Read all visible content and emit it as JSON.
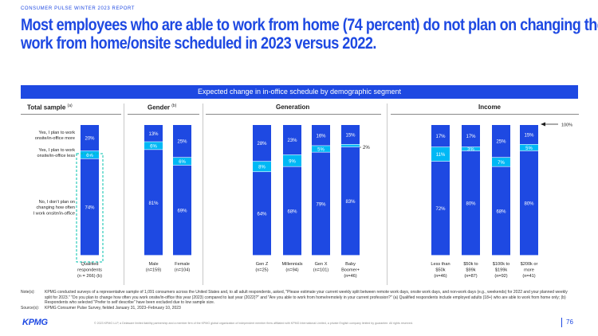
{
  "header": {
    "report_label": "CONSUMER PULSE WINTER 2023 REPORT",
    "title_line1": "Most employees who are able to work from home (74 percent) do not plan on changing their",
    "title_line2": "work from home/onsite scheduled in 2023 versus 2022."
  },
  "banner": "Expected change in in-office schedule by demographic segment",
  "groups": [
    {
      "title": "Total sample",
      "note": "(a)"
    },
    {
      "title": "Gender",
      "note": "(b)"
    },
    {
      "title": "Generation",
      "note": ""
    },
    {
      "title": "Income",
      "note": ""
    }
  ],
  "row_labels": {
    "more": "Yes, I plan to work onsite/in-office more",
    "less": "Yes, I plan to work onsite/in-office less",
    "no_change": "No, I don't plan on changing how often I work onsite/in-office"
  },
  "annotations": {
    "gen_small": "2%",
    "income_arrow": "100%"
  },
  "colors": {
    "no_change": "#1e49e2",
    "less": "#00b8f5",
    "more": "#1e49e2",
    "text_on_dark": "#ffffff",
    "accent": "#1e49e2",
    "highlight_outline": "#00c0ae"
  },
  "chart_data": {
    "type": "bar",
    "stacked": true,
    "title": "Expected change in in-office schedule by demographic segment",
    "categories": [
      "Qualified respondents (n = 266) (b)",
      "Male (n=159)",
      "Female (n=104)",
      "Gen Z (n=25)",
      "Millennials (n=94)",
      "Gen X (n=101)",
      "Baby Boomer+ (n=46)",
      "Less than $50k (n=46)",
      "$50k to $99k (n=87)",
      "$100k to $199k (n=92)",
      "$200k or more (n=41)"
    ],
    "category_lines": [
      [
        "Qualified",
        "respondents",
        "(n = 266) (b)"
      ],
      [
        "Male",
        "(n=159)"
      ],
      [
        "Female",
        "(n=104)"
      ],
      [
        "Gen Z",
        "(n=25)"
      ],
      [
        "Millennials",
        "(n=94)"
      ],
      [
        "Gen X",
        "(n=101)"
      ],
      [
        "Baby",
        "Boomer+",
        "(n=46)"
      ],
      [
        "Less than",
        "$50k",
        "(n=46)"
      ],
      [
        "$50k to",
        "$99k",
        "(n=87)"
      ],
      [
        "$100k to",
        "$199k",
        "(n=92)"
      ],
      [
        "$200k or",
        "more",
        "(n=41)"
      ]
    ],
    "series": [
      {
        "name": "No, I don't plan on changing how often I work onsite/in-office",
        "values": [
          74,
          81,
          69,
          64,
          68,
          79,
          83,
          72,
          80,
          68,
          80
        ]
      },
      {
        "name": "Yes, I plan to work onsite/in-office less",
        "values": [
          6,
          6,
          6,
          8,
          9,
          5,
          2,
          11,
          3,
          7,
          5
        ]
      },
      {
        "name": "Yes, I plan to work onsite/in-office more",
        "values": [
          20,
          13,
          25,
          28,
          23,
          16,
          15,
          17,
          17,
          25,
          15
        ]
      }
    ],
    "value_labels": [
      [
        "74%",
        "81%",
        "69%",
        "64%",
        "68%",
        "79%",
        "83%",
        "72%",
        "80%",
        "68%",
        "80%"
      ],
      [
        "6%",
        "6%",
        "6%",
        "8%",
        "9%",
        "5%",
        "",
        "11%",
        "3%",
        "7%",
        "5%"
      ],
      [
        "20%",
        "13%",
        "25%",
        "28%",
        "23%",
        "16%",
        "15%",
        "17%",
        "17%",
        "25%",
        "15%"
      ]
    ],
    "ylim": [
      0,
      100
    ],
    "grid": false,
    "legend": "left row labels"
  },
  "notes": {
    "notes_label": "Note(s):",
    "notes_text": "KPMG conducted surveys of a representative sample of 1,091 consumers across the United States and, to all adult respondents, asked, \"Please estimate your current weekly split between remote work days, onsite work days, and non-work days (e.g., weekends) for 2022 and your planned weekly split for 2023.\" \"Do you plan to change how often you work onsite/in-office this year (2023) compared to last year (2022)?\" and \"Are you able to work from home/remotely in your current profession?\" (a) Qualified respondents include employed adults (18+) who are able to work from home only; (b) Respondents who selected \"Prefer to self describe\" have been excluded due to low sample size.",
    "source_label": "Source(s):",
    "source_text": "KPMG Consumer Pulse Survey, fielded January 31, 2023–February 10, 2023"
  },
  "footer": {
    "logo": "KPMG",
    "legal": "© 2023 KPMG LLP, a Delaware limited liability partnership and a member firm of the KPMG global organization of independent member firms affiliated with KPMG International Limited, a private English company limited by guarantee. All rights reserved.",
    "page": "76"
  }
}
